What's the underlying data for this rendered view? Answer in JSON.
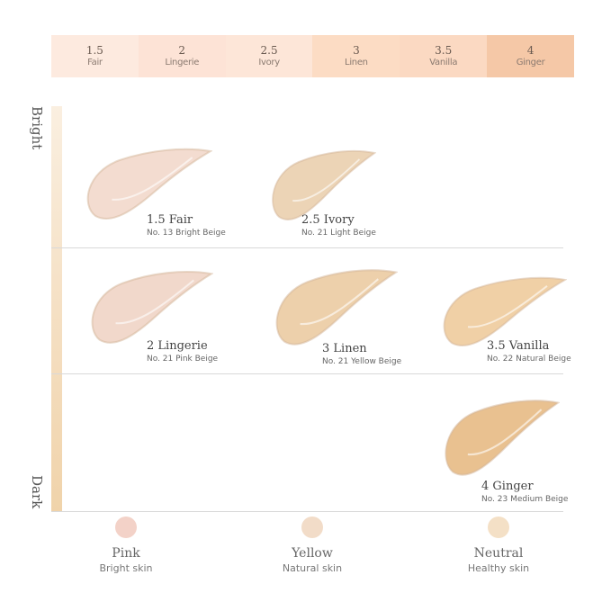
{
  "shade_bar": [
    {
      "num": "1.5",
      "name": "Fair",
      "color": "#fdeadf"
    },
    {
      "num": "2",
      "name": "Lingerie",
      "color": "#fde3d6"
    },
    {
      "num": "2.5",
      "name": "Ivory",
      "color": "#fde6d8"
    },
    {
      "num": "3",
      "name": "Linen",
      "color": "#fcdcc4"
    },
    {
      "num": "3.5",
      "name": "Vanilla",
      "color": "#fbd9c2"
    },
    {
      "num": "4",
      "name": "Ginger",
      "color": "#f5c8a7"
    }
  ],
  "axis": {
    "top": "Bright",
    "bottom": "Dark"
  },
  "swatches": [
    {
      "title": "1.5 Fair",
      "subtitle": "No. 13 Bright Beige",
      "color": "#f3dcd0"
    },
    {
      "title": "2.5 Ivory",
      "subtitle": "No. 21 Light Beige",
      "color": "#ecd4b6"
    },
    {
      "title": "2 Lingerie",
      "subtitle": "No. 21 Pink Beige",
      "color": "#f1d8cb"
    },
    {
      "title": "3 Linen",
      "subtitle": "No. 21 Yellow Beige",
      "color": "#edd0ab"
    },
    {
      "title": "3.5 Vanilla",
      "subtitle": "No. 22 Natural Beige",
      "color": "#f0d0a6"
    },
    {
      "title": "4 Ginger",
      "subtitle": "No. 23 Medium Beige",
      "color": "#e9c190"
    }
  ],
  "undertones": [
    {
      "title": "Pink",
      "subtitle": "Bright skin",
      "color": "#f3d2c8"
    },
    {
      "title": "Yellow",
      "subtitle": "Natural skin",
      "color": "#f2dcc8"
    },
    {
      "title": "Neutral",
      "subtitle": "Healthy skin",
      "color": "#f4e0c6"
    }
  ]
}
